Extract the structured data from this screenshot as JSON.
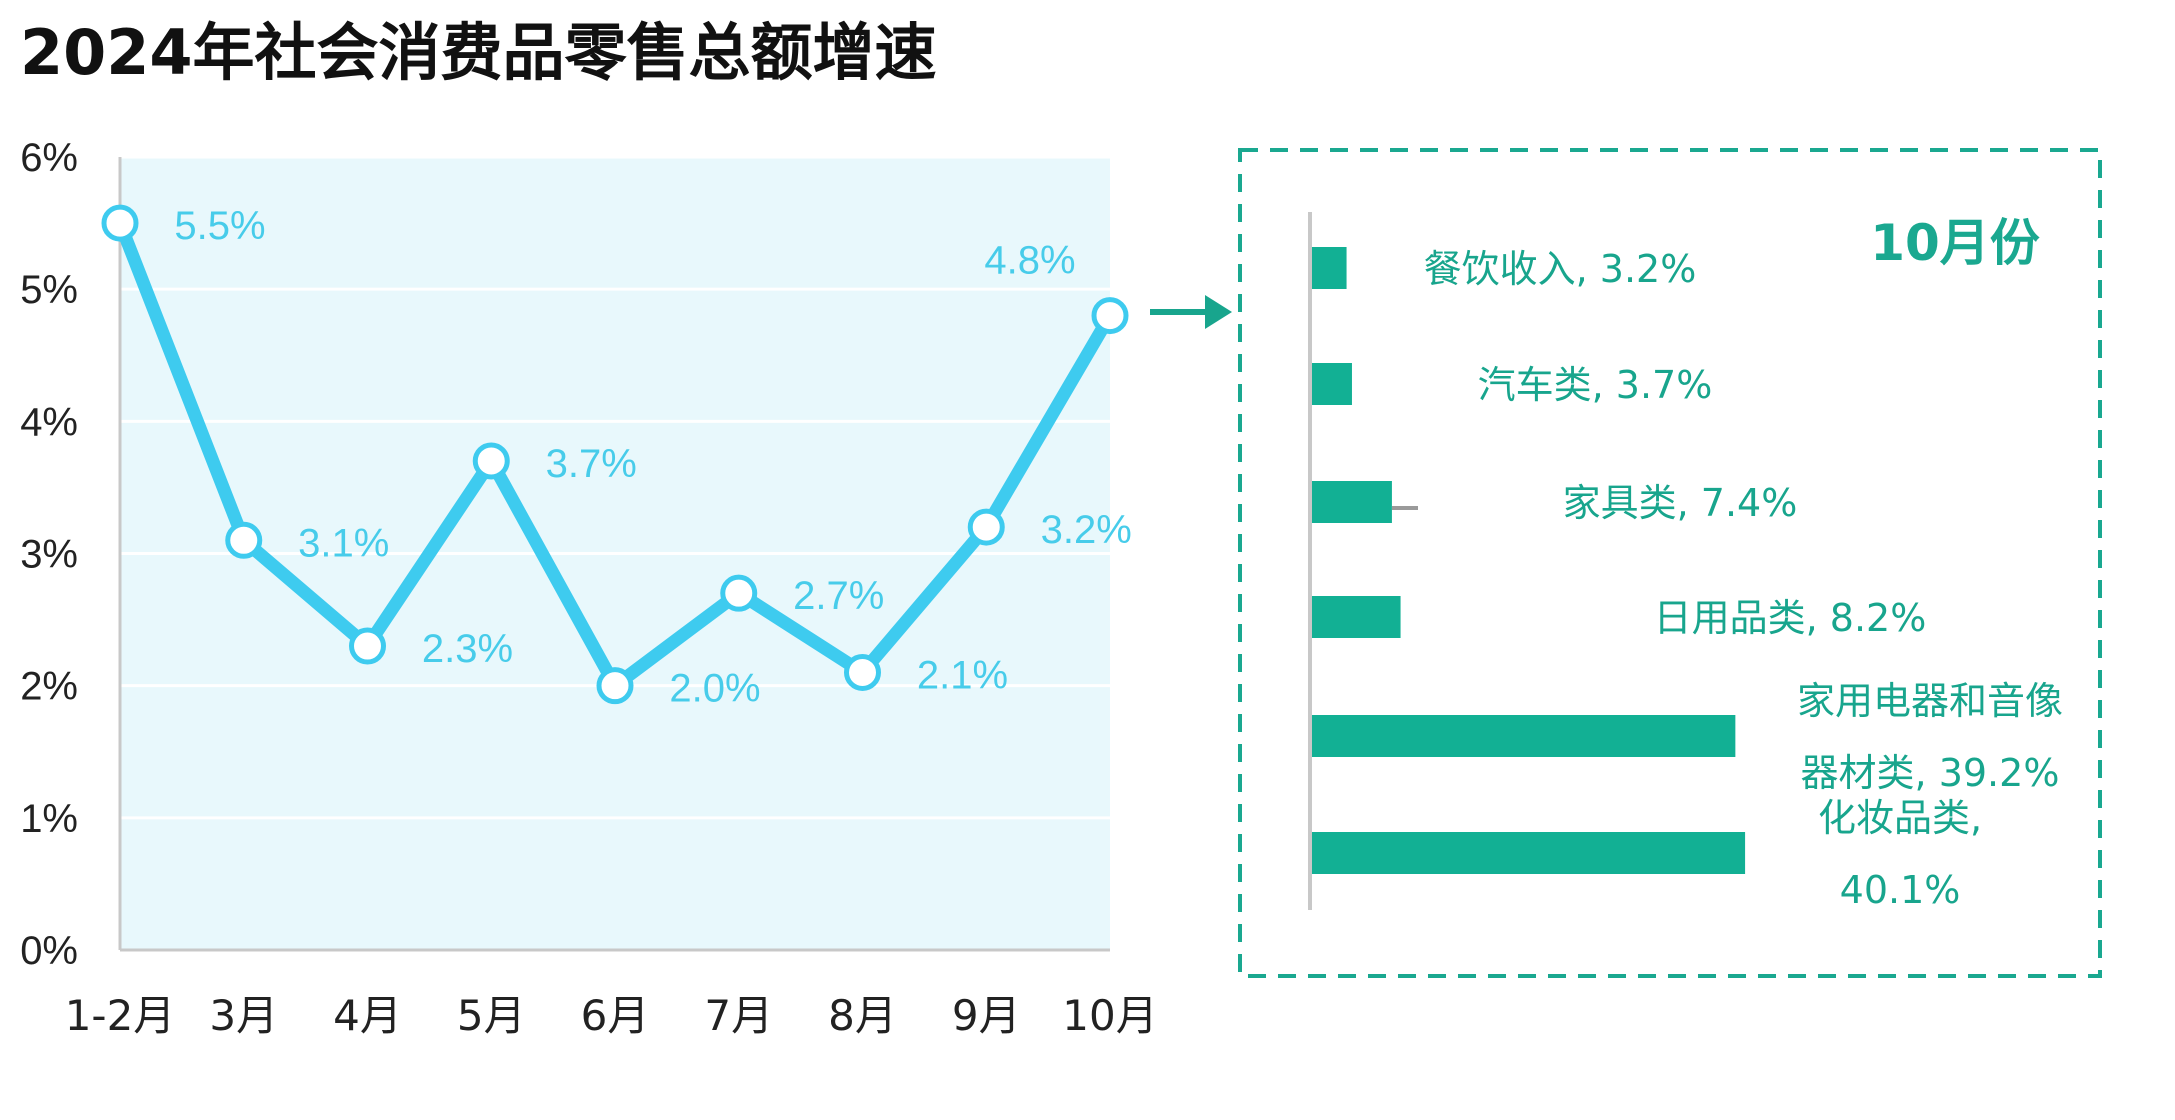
{
  "title": "2024年社会消费品零售总额增速",
  "chart_data": [
    {
      "type": "line",
      "categories": [
        "1-2月",
        "3月",
        "4月",
        "5月",
        "6月",
        "7月",
        "8月",
        "9月",
        "10月"
      ],
      "values": [
        5.5,
        3.1,
        2.3,
        3.7,
        2.0,
        2.7,
        2.1,
        3.2,
        4.8
      ],
      "data_labels": [
        "5.5%",
        "3.1%",
        "2.3%",
        "3.7%",
        "2.0%",
        "2.7%",
        "2.1%",
        "3.2%",
        "4.8%"
      ],
      "y_ticks": [
        "0%",
        "1%",
        "2%",
        "3%",
        "4%",
        "5%",
        "6%"
      ],
      "ylim": [
        0,
        6
      ],
      "grid": true,
      "line_color": "#3ecbef",
      "plot_background": "#e8f8fc"
    },
    {
      "type": "bar",
      "orientation": "horizontal",
      "title": "10月份",
      "categories": [
        "餐饮收入",
        "汽车类",
        "家具类",
        "日用品类",
        "家用电器和音像器材类",
        "化妆品类"
      ],
      "values": [
        3.2,
        3.7,
        7.4,
        8.2,
        39.2,
        40.1
      ],
      "labels": [
        [
          "餐饮收入, 3.2%"
        ],
        [
          "汽车类, 3.7%"
        ],
        [
          "家具类, 7.4%"
        ],
        [
          "日用品类, 8.2%"
        ],
        [
          "家用电器和音像",
          "器材类, 39.2%"
        ],
        [
          "化妆品类,",
          "40.1%"
        ]
      ],
      "bar_color": "#12b094",
      "border_color": "#1aa890"
    }
  ]
}
